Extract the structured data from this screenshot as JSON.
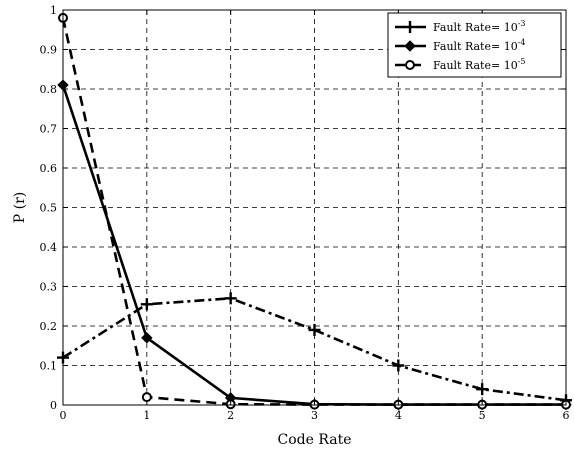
{
  "chart_data": {
    "type": "line",
    "xlabel": "Code Rate",
    "ylabel": "P (r)",
    "xlim": [
      0,
      6
    ],
    "ylim": [
      0,
      1
    ],
    "xticks": [
      "0",
      "1",
      "2",
      "3",
      "4",
      "5",
      "6"
    ],
    "yticks": [
      "0",
      "0.1",
      "0.2",
      "0.3",
      "0.4",
      "0.5",
      "0.6",
      "0.7",
      "0.8",
      "0.9",
      "1"
    ],
    "grid": true,
    "legend_position": "top-right",
    "x": [
      0,
      1,
      2,
      3,
      4,
      5,
      6
    ],
    "series": [
      {
        "name": "Fault Rate= 10",
        "exponent": "-3",
        "marker": "plus",
        "line_style": "dash-dot",
        "values": [
          0.12,
          0.255,
          0.27,
          0.19,
          0.1,
          0.04,
          0.012
        ]
      },
      {
        "name": "Fault Rate= 10",
        "exponent": "-4",
        "marker": "diamond",
        "line_style": "solid",
        "values": [
          0.81,
          0.17,
          0.018,
          0.002,
          0.001,
          0.001,
          0.001
        ]
      },
      {
        "name": "Fault Rate= 10",
        "exponent": "-5",
        "marker": "circle",
        "line_style": "dashed",
        "values": [
          0.98,
          0.02,
          0.002,
          0.001,
          0.001,
          0.001,
          0.001
        ]
      }
    ]
  }
}
